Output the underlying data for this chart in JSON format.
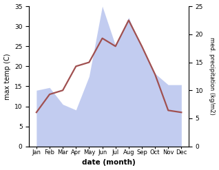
{
  "months": [
    "Jan",
    "Feb",
    "Mar",
    "Apr",
    "May",
    "Jun",
    "Jul",
    "Aug",
    "Sep",
    "Oct",
    "Nov",
    "Dec"
  ],
  "temperature": [
    8.5,
    13.0,
    14.0,
    20.0,
    21.0,
    27.0,
    25.0,
    31.5,
    25.0,
    18.0,
    9.0,
    8.5
  ],
  "precipitation": [
    10.0,
    10.5,
    7.5,
    6.5,
    12.5,
    25.0,
    18.0,
    23.0,
    17.5,
    13.0,
    11.0,
    11.0
  ],
  "temp_color": "#a05050",
  "precip_color": "#b8c4ee",
  "precip_alpha": 0.85,
  "title": "",
  "xlabel": "date (month)",
  "ylabel_left": "max temp (C)",
  "ylabel_right": "med. precipitation (kg/m2)",
  "ylim_left": [
    0,
    35
  ],
  "ylim_right": [
    0,
    25
  ],
  "yticks_left": [
    0,
    5,
    10,
    15,
    20,
    25,
    30,
    35
  ],
  "yticks_right": [
    0,
    5,
    10,
    15,
    20,
    25
  ],
  "bg_color": "#ffffff"
}
